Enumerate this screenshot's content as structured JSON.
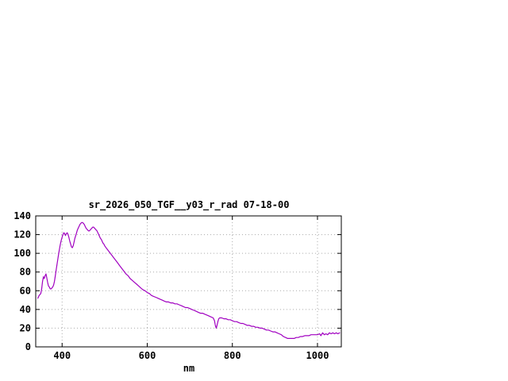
{
  "chart_data": {
    "type": "line",
    "title": "sr_2026_050_TGF__y03_r_rad 07-18-00",
    "xlabel": "nm",
    "ylabel": "",
    "xlim": [
      338,
      1056
    ],
    "ylim": [
      0,
      140
    ],
    "xticks": [
      400,
      600,
      800,
      1000
    ],
    "yticks": [
      0,
      20,
      40,
      60,
      80,
      100,
      120,
      140
    ],
    "grid": true,
    "legend": false,
    "colors": {
      "line": "#a000c0",
      "grid": "#aaaaaa",
      "border": "#000000",
      "background": "#ffffff"
    },
    "series": [
      {
        "color": "#a000c0",
        "points": [
          [
            343,
            52
          ],
          [
            346,
            55
          ],
          [
            348,
            56
          ],
          [
            350,
            57
          ],
          [
            352,
            62
          ],
          [
            354,
            70
          ],
          [
            356,
            75
          ],
          [
            358,
            73
          ],
          [
            360,
            76
          ],
          [
            362,
            78
          ],
          [
            364,
            74
          ],
          [
            366,
            69
          ],
          [
            368,
            65
          ],
          [
            370,
            64
          ],
          [
            372,
            62
          ],
          [
            374,
            62
          ],
          [
            376,
            63
          ],
          [
            378,
            64
          ],
          [
            380,
            66
          ],
          [
            382,
            70
          ],
          [
            384,
            76
          ],
          [
            386,
            82
          ],
          [
            388,
            88
          ],
          [
            390,
            94
          ],
          [
            392,
            100
          ],
          [
            394,
            105
          ],
          [
            396,
            110
          ],
          [
            398,
            114
          ],
          [
            400,
            117
          ],
          [
            402,
            120
          ],
          [
            404,
            122
          ],
          [
            406,
            121
          ],
          [
            408,
            119
          ],
          [
            410,
            121
          ],
          [
            412,
            122
          ],
          [
            414,
            120
          ],
          [
            416,
            117
          ],
          [
            418,
            113
          ],
          [
            420,
            110
          ],
          [
            422,
            107
          ],
          [
            424,
            106
          ],
          [
            426,
            108
          ],
          [
            428,
            112
          ],
          [
            430,
            116
          ],
          [
            432,
            119
          ],
          [
            434,
            122
          ],
          [
            436,
            125
          ],
          [
            438,
            127
          ],
          [
            440,
            129
          ],
          [
            442,
            131
          ],
          [
            444,
            132
          ],
          [
            446,
            133
          ],
          [
            448,
            133
          ],
          [
            450,
            132
          ],
          [
            452,
            131
          ],
          [
            454,
            129
          ],
          [
            456,
            127
          ],
          [
            458,
            126
          ],
          [
            460,
            125
          ],
          [
            462,
            124
          ],
          [
            464,
            124
          ],
          [
            466,
            125
          ],
          [
            468,
            126
          ],
          [
            470,
            127
          ],
          [
            472,
            128
          ],
          [
            474,
            128
          ],
          [
            476,
            127
          ],
          [
            478,
            126
          ],
          [
            480,
            125
          ],
          [
            482,
            124
          ],
          [
            484,
            122
          ],
          [
            486,
            120
          ],
          [
            488,
            118
          ],
          [
            490,
            116
          ],
          [
            492,
            115
          ],
          [
            494,
            113
          ],
          [
            496,
            111
          ],
          [
            498,
            110
          ],
          [
            500,
            108
          ],
          [
            505,
            105
          ],
          [
            510,
            102
          ],
          [
            515,
            99
          ],
          [
            520,
            96
          ],
          [
            525,
            93
          ],
          [
            530,
            90
          ],
          [
            535,
            87
          ],
          [
            540,
            84
          ],
          [
            545,
            81
          ],
          [
            550,
            78
          ],
          [
            555,
            76
          ],
          [
            560,
            73
          ],
          [
            565,
            71
          ],
          [
            570,
            69
          ],
          [
            575,
            67
          ],
          [
            580,
            65
          ],
          [
            585,
            63
          ],
          [
            590,
            61
          ],
          [
            595,
            60
          ],
          [
            600,
            58
          ],
          [
            605,
            57
          ],
          [
            610,
            55
          ],
          [
            615,
            54
          ],
          [
            620,
            53
          ],
          [
            625,
            52
          ],
          [
            630,
            51
          ],
          [
            635,
            50
          ],
          [
            640,
            49
          ],
          [
            645,
            48
          ],
          [
            650,
            48
          ],
          [
            655,
            47
          ],
          [
            660,
            47
          ],
          [
            665,
            46
          ],
          [
            670,
            46
          ],
          [
            675,
            45
          ],
          [
            680,
            44
          ],
          [
            685,
            43
          ],
          [
            690,
            42
          ],
          [
            695,
            42
          ],
          [
            700,
            41
          ],
          [
            705,
            40
          ],
          [
            710,
            39
          ],
          [
            715,
            38
          ],
          [
            720,
            37
          ],
          [
            725,
            36
          ],
          [
            730,
            36
          ],
          [
            735,
            35
          ],
          [
            740,
            34
          ],
          [
            745,
            33
          ],
          [
            750,
            32
          ],
          [
            755,
            31
          ],
          [
            758,
            28
          ],
          [
            760,
            23
          ],
          [
            762,
            20
          ],
          [
            764,
            23
          ],
          [
            766,
            27
          ],
          [
            768,
            30
          ],
          [
            770,
            31
          ],
          [
            775,
            31
          ],
          [
            780,
            30
          ],
          [
            785,
            30
          ],
          [
            790,
            29
          ],
          [
            795,
            29
          ],
          [
            800,
            28
          ],
          [
            805,
            27
          ],
          [
            810,
            27
          ],
          [
            815,
            26
          ],
          [
            820,
            25
          ],
          [
            825,
            25
          ],
          [
            830,
            24
          ],
          [
            835,
            23
          ],
          [
            840,
            23
          ],
          [
            845,
            22
          ],
          [
            850,
            22
          ],
          [
            855,
            21
          ],
          [
            860,
            21
          ],
          [
            865,
            20
          ],
          [
            870,
            20
          ],
          [
            875,
            19
          ],
          [
            880,
            18
          ],
          [
            885,
            18
          ],
          [
            890,
            17
          ],
          [
            895,
            16
          ],
          [
            900,
            16
          ],
          [
            905,
            15
          ],
          [
            910,
            14
          ],
          [
            915,
            13
          ],
          [
            920,
            11
          ],
          [
            925,
            10
          ],
          [
            930,
            9
          ],
          [
            935,
            9
          ],
          [
            940,
            9
          ],
          [
            945,
            9
          ],
          [
            950,
            10
          ],
          [
            955,
            10
          ],
          [
            960,
            11
          ],
          [
            965,
            11
          ],
          [
            970,
            12
          ],
          [
            975,
            12
          ],
          [
            980,
            12
          ],
          [
            985,
            13
          ],
          [
            990,
            13
          ],
          [
            995,
            13
          ],
          [
            1000,
            13
          ],
          [
            1005,
            14
          ],
          [
            1008,
            12
          ],
          [
            1012,
            15
          ],
          [
            1016,
            13
          ],
          [
            1020,
            14
          ],
          [
            1024,
            13
          ],
          [
            1028,
            15
          ],
          [
            1032,
            14
          ],
          [
            1036,
            15
          ],
          [
            1040,
            14
          ],
          [
            1044,
            15
          ],
          [
            1048,
            14
          ],
          [
            1052,
            15
          ]
        ]
      }
    ]
  }
}
